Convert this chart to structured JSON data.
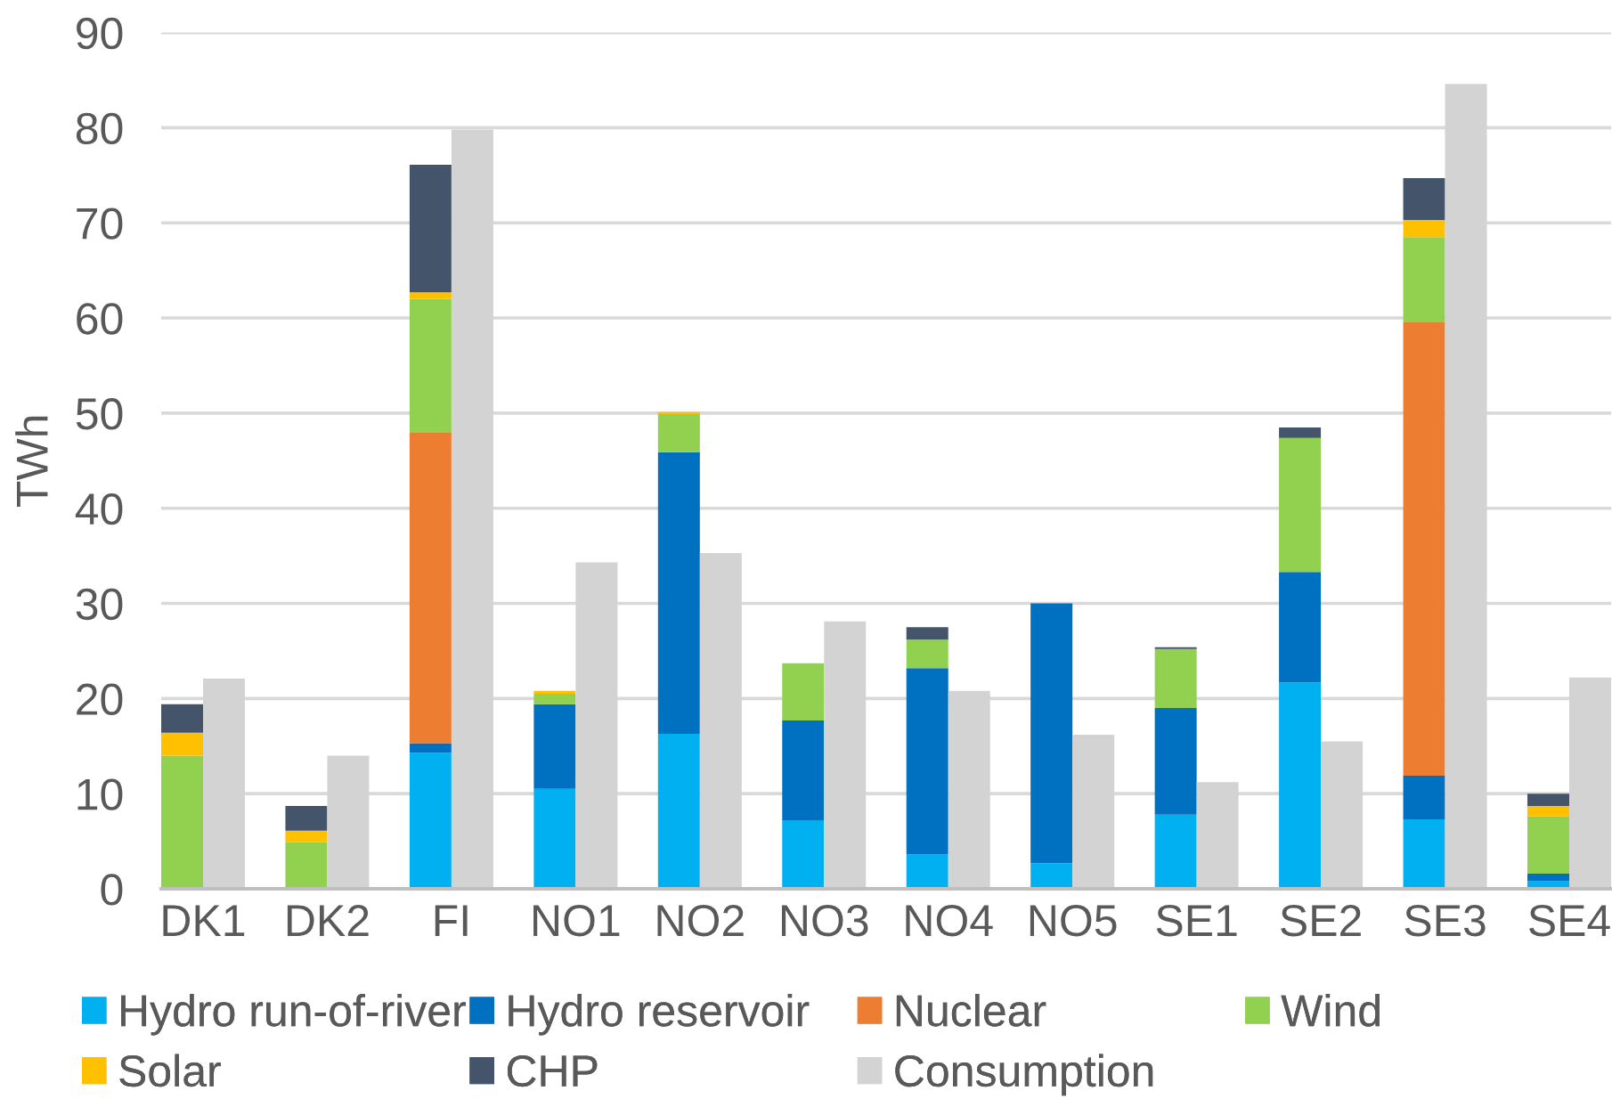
{
  "chart_data": {
    "type": "bar",
    "ylabel": "TWh",
    "ylim": [
      0,
      90
    ],
    "yticks": [
      0,
      10,
      20,
      30,
      40,
      50,
      60,
      70,
      80,
      90
    ],
    "grid": "y",
    "legend": "bottom",
    "categories": [
      "DK1",
      "DK2",
      "FI",
      "NO1",
      "NO2",
      "NO3",
      "NO4",
      "NO5",
      "SE1",
      "SE2",
      "SE3",
      "SE4"
    ],
    "series": [
      {
        "name": "Hydro run-of-river",
        "color": "#00b0f0",
        "base": [
          null,
          null,
          0,
          0,
          0,
          0,
          0,
          0,
          0,
          0,
          0,
          0
        ],
        "values": [
          null,
          null,
          14.3,
          10.5,
          16.3,
          7.2,
          3.6,
          2.7,
          7.8,
          21.7,
          7.3,
          0.8
        ]
      },
      {
        "name": "Hydro reservoir",
        "color": "#0070c0",
        "base": [
          null,
          null,
          14.3,
          10.5,
          16.3,
          7.2,
          3.6,
          2.7,
          7.8,
          21.7,
          7.3,
          0.8
        ],
        "values": [
          null,
          null,
          1.0,
          8.9,
          29.6,
          10.5,
          19.6,
          27.3,
          11.2,
          11.6,
          4.6,
          0.8
        ]
      },
      {
        "name": "Nuclear",
        "color": "#ed7d31",
        "base": [
          null,
          null,
          15.3,
          null,
          null,
          null,
          null,
          null,
          null,
          null,
          11.9,
          null
        ],
        "values": [
          null,
          null,
          32.7,
          null,
          null,
          null,
          null,
          null,
          null,
          null,
          47.7,
          null
        ]
      },
      {
        "name": "Wind",
        "color": "#92d050",
        "base": [
          0,
          0,
          48.0,
          19.4,
          45.9,
          17.7,
          23.2,
          null,
          19.0,
          33.3,
          59.6,
          1.6
        ],
        "values": [
          14.0,
          4.9,
          14.0,
          1.1,
          4.0,
          6.0,
          3.0,
          null,
          6.2,
          14.1,
          8.9,
          6.0
        ]
      },
      {
        "name": "Solar",
        "color": "#ffc000",
        "base": [
          14.0,
          4.9,
          62.0,
          20.5,
          49.9,
          null,
          null,
          null,
          null,
          null,
          68.5,
          7.6
        ],
        "values": [
          2.4,
          1.2,
          0.7,
          0.3,
          0.2,
          null,
          null,
          null,
          null,
          null,
          1.8,
          1.1
        ]
      },
      {
        "name": "CHP",
        "color": "#44546a",
        "base": [
          16.4,
          6.1,
          62.7,
          null,
          null,
          null,
          26.2,
          null,
          25.2,
          47.4,
          70.3,
          8.7
        ],
        "values": [
          3.0,
          2.6,
          13.4,
          null,
          null,
          null,
          1.3,
          null,
          0.2,
          1.1,
          4.4,
          1.3
        ]
      },
      {
        "name": "Consumption",
        "color": "#d3d3d3",
        "values": [
          22.1,
          14.0,
          79.8,
          34.3,
          35.3,
          28.1,
          20.8,
          16.2,
          11.2,
          15.5,
          84.6,
          22.2
        ]
      }
    ]
  }
}
